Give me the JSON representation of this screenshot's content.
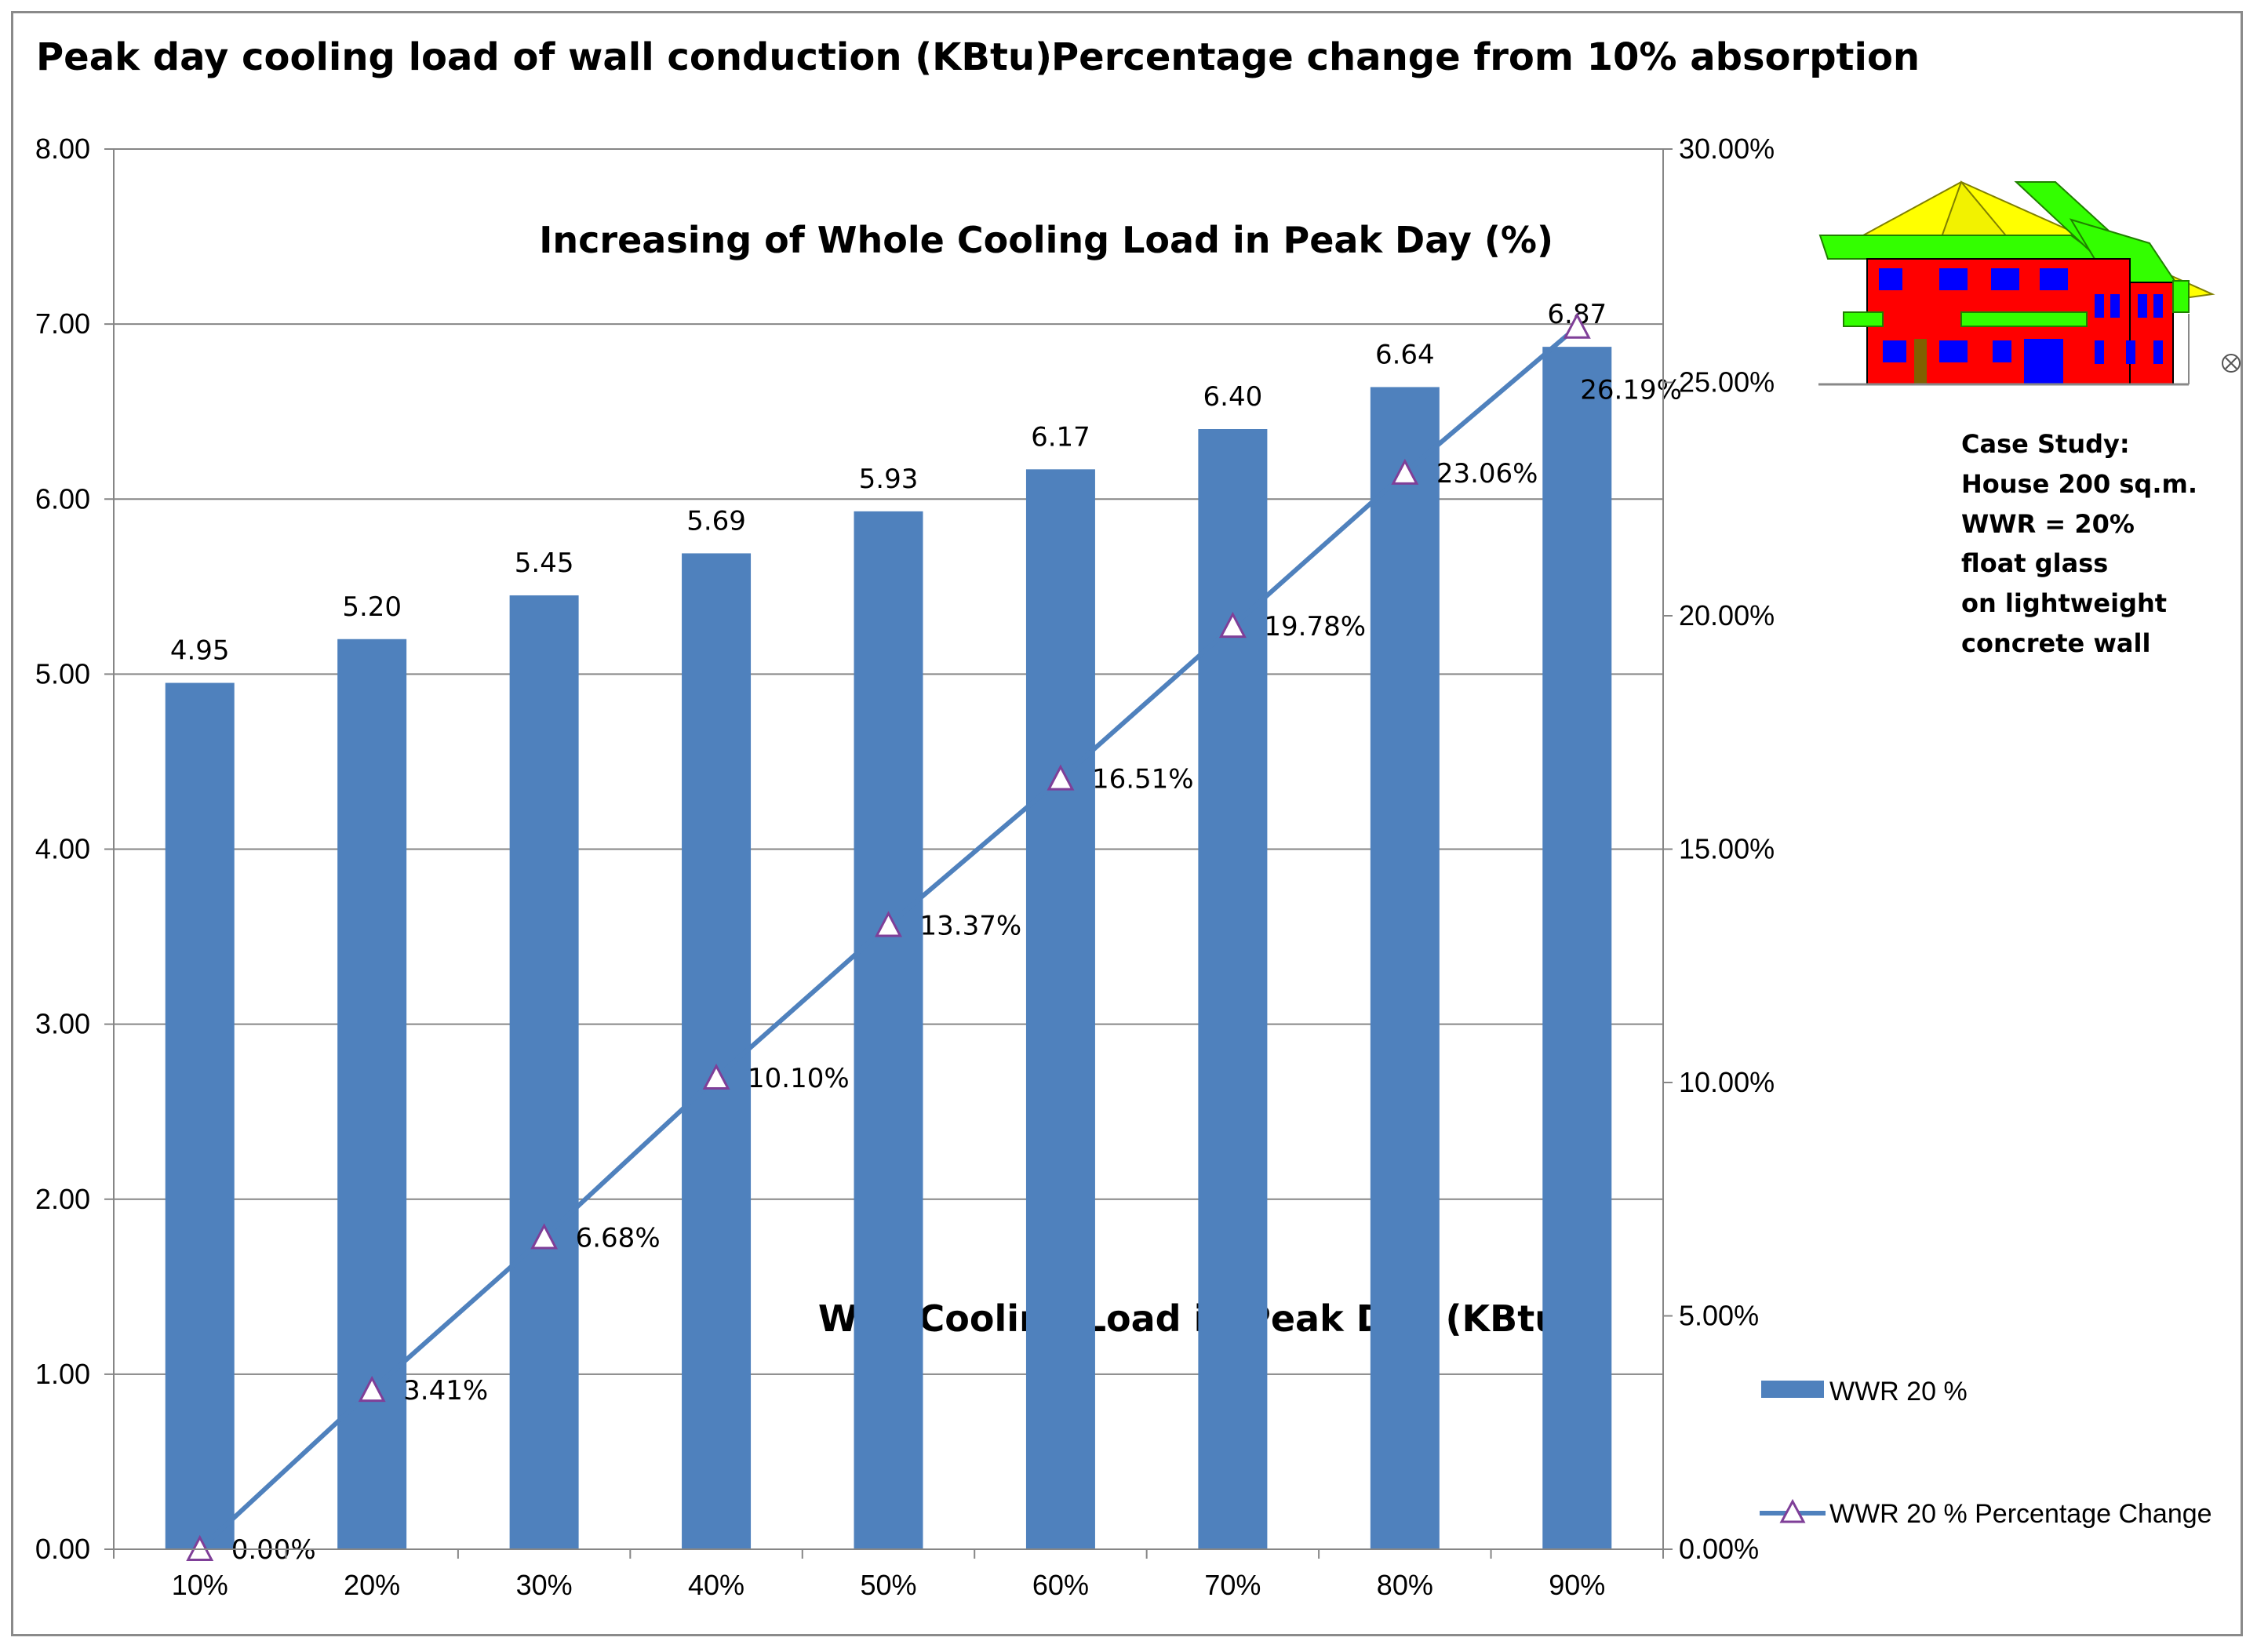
{
  "chart_data": {
    "type": "bar+line",
    "categories": [
      "10%",
      "20%",
      "30%",
      "40%",
      "50%",
      "60%",
      "70%",
      "80%",
      "90%"
    ],
    "series": [
      {
        "name": "WWR 20 %",
        "axis": "left",
        "kind": "bar",
        "values": [
          4.95,
          5.2,
          5.45,
          5.69,
          5.93,
          6.17,
          6.4,
          6.64,
          6.87
        ],
        "labels": [
          "4.95",
          "5.20",
          "5.45",
          "5.69",
          "5.93",
          "6.17",
          "6.40",
          "6.64",
          "6.87"
        ]
      },
      {
        "name": "WWR 20 % Percentage Change",
        "axis": "right",
        "kind": "line",
        "values": [
          0.0,
          3.41,
          6.68,
          10.1,
          13.37,
          16.51,
          19.78,
          23.06,
          26.19
        ],
        "labels": [
          "0.00%",
          "3.41%",
          "6.68%",
          "10.10%",
          "13.37%",
          "16.51%",
          "19.78%",
          "23.06%",
          "26.19%"
        ]
      }
    ],
    "left_axis": {
      "title": "Peak day cooling load of wall conduction (KBtu)",
      "ylim": [
        0,
        8
      ],
      "ticks": [
        "0.00",
        "1.00",
        "2.00",
        "3.00",
        "4.00",
        "5.00",
        "6.00",
        "7.00",
        "8.00"
      ]
    },
    "right_axis": {
      "title": "Percentage change from 10% absorption",
      "ylim": [
        0,
        30
      ],
      "ticks": [
        "0.00%",
        "5.00%",
        "10.00%",
        "15.00%",
        "20.00%",
        "25.00%",
        "30.00%"
      ]
    },
    "annotations": {
      "line_title": "Increasing of Whole Cooling Load in Peak Day (%)",
      "bar_title": "Wall Cooling Load in Peak Day (KBtu)"
    },
    "case_study": [
      "Case Study:",
      "House 200 sq.m.",
      "WWR = 20%",
      "float glass",
      "on lightweight",
      "concrete wall"
    ],
    "legend": {
      "placement": "right"
    },
    "grid": true,
    "colors": {
      "bar": "#4F81BD",
      "line": "#4F81BD",
      "marker": "#7F3F98",
      "grid": "#868686"
    }
  }
}
